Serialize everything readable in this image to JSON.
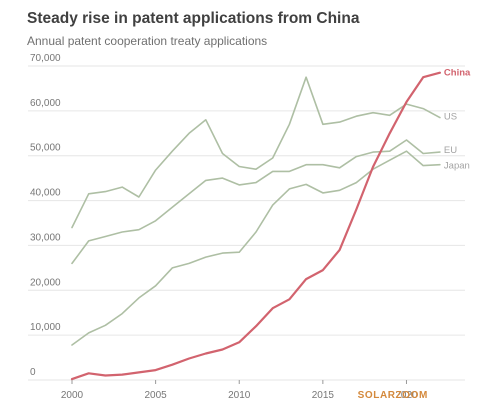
{
  "chart_data": {
    "type": "line",
    "title": "Steady rise in patent applications from China",
    "subtitle": "Annual patent cooperation treaty applications",
    "xlabel": "",
    "ylabel": "",
    "x": [
      2000,
      2001,
      2002,
      2003,
      2004,
      2005,
      2006,
      2007,
      2008,
      2009,
      2010,
      2011,
      2012,
      2013,
      2014,
      2015,
      2016,
      2017,
      2018,
      2019,
      2020,
      2021,
      2022
    ],
    "xlim": [
      2000,
      2023.5
    ],
    "ylim": [
      0,
      70000
    ],
    "x_ticks": [
      "2000",
      "2005",
      "2010",
      "2015",
      "2020"
    ],
    "x_tick_values": [
      2000,
      2005,
      2010,
      2015,
      2020
    ],
    "y_ticks": [
      "0",
      "10,000",
      "20,000",
      "30,000",
      "40,000",
      "50,000",
      "60,000",
      "70,000"
    ],
    "y_tick_values": [
      0,
      10000,
      20000,
      30000,
      40000,
      50000,
      60000,
      70000
    ],
    "grid": true,
    "legend": "inline labels at line ends",
    "series": [
      {
        "name": "US",
        "color": "#aebfa4",
        "label_color": "#a3a3a3",
        "values": [
          34000,
          41500,
          42000,
          43000,
          40800,
          46800,
          51000,
          55000,
          58000,
          50500,
          47600,
          47000,
          49500,
          57000,
          67500,
          57000,
          57500,
          58800,
          59600,
          59000,
          61500,
          60500,
          58500
        ]
      },
      {
        "name": "EU",
        "color": "#aebfa4",
        "label_color": "#a3a3a3",
        "values": [
          26000,
          31000,
          32000,
          33000,
          33500,
          35500,
          38500,
          41500,
          44500,
          45000,
          43500,
          44000,
          46500,
          46500,
          48000,
          48000,
          47300,
          49800,
          50800,
          51000,
          53500,
          50500,
          50800
        ]
      },
      {
        "name": "Japan",
        "color": "#aebfa4",
        "label_color": "#a3a3a3",
        "values": [
          7800,
          10500,
          12200,
          14800,
          18300,
          21000,
          25000,
          26000,
          27400,
          28300,
          28500,
          33000,
          39000,
          42600,
          43600,
          41700,
          42300,
          44000,
          47000,
          49000,
          51000,
          47800,
          48000
        ]
      },
      {
        "name": "China",
        "color": "#d2636e",
        "label_color": "#d2636e",
        "values": [
          200,
          1500,
          1000,
          1200,
          1700,
          2200,
          3400,
          4800,
          5900,
          6800,
          8400,
          12000,
          16000,
          18000,
          22500,
          24500,
          29000,
          38000,
          47500,
          55000,
          62000,
          67500,
          68500
        ]
      }
    ]
  },
  "watermark": "SOLARZOOM"
}
